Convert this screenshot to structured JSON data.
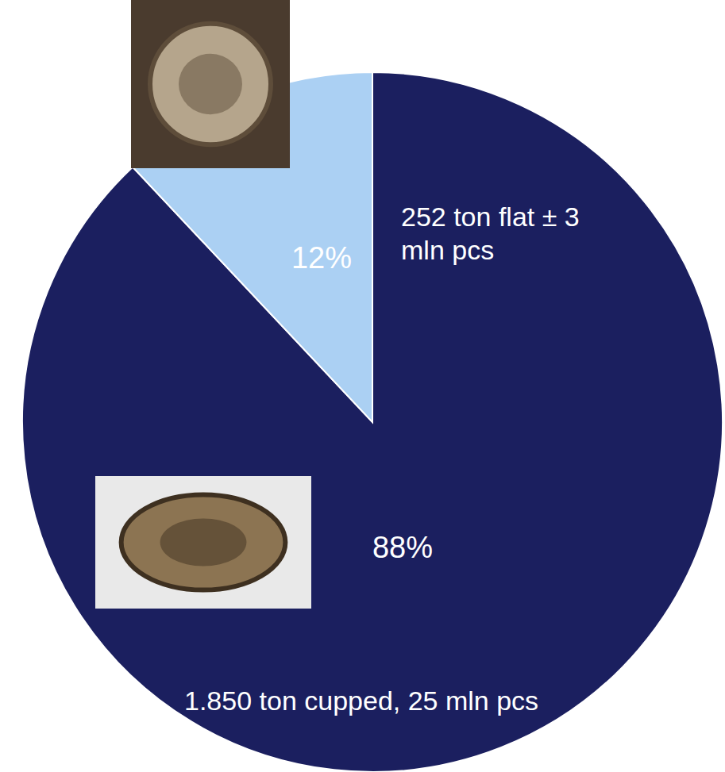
{
  "chart_data": {
    "type": "pie",
    "categories": [
      "1.850 ton cupped, 25 mln pcs",
      "252 ton flat ± 3 mln pcs"
    ],
    "values": [
      88,
      12
    ],
    "value_labels": [
      "88%",
      "12%"
    ],
    "colors": [
      "#1b1f5f",
      "#abd0f3"
    ],
    "data_labels": true
  }
}
